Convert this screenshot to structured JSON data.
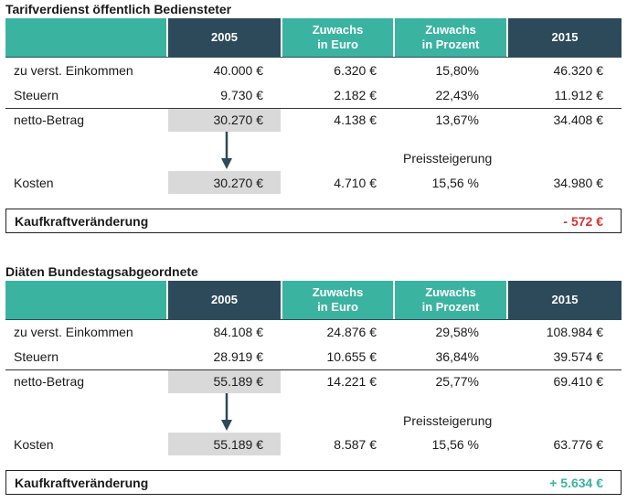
{
  "tables": [
    {
      "title": "Tarifverdienst öffentlich Bediensteter",
      "headers": [
        "2005",
        "Zuwachs\nin Euro",
        "Zuwachs\nin Prozent",
        "2015"
      ],
      "rows": [
        {
          "label": "zu verst. Einkommen",
          "y2005": "40.000 €",
          "euro": "6.320 €",
          "pct": "15,80%",
          "y2015": "46.320 €"
        },
        {
          "label": "Steuern",
          "y2005": "9.730 €",
          "euro": "2.182 €",
          "pct": "22,43%",
          "y2015": "11.912 €"
        },
        {
          "label": "netto-Betrag",
          "y2005": "30.270 €",
          "euro": "4.138 €",
          "pct": "13,67%",
          "y2015": "34.408 €"
        }
      ],
      "price_label": "Preissteigerung",
      "kosten": {
        "label": "Kosten",
        "y2005": "30.270 €",
        "euro": "4.710 €",
        "pct": "15,56 %",
        "y2015": "34.980 €"
      },
      "kaufkraft": {
        "label": "Kaufkraftveränderung",
        "value": "- 572 €",
        "color": "#d6312f"
      }
    },
    {
      "title": "Diäten Bundestagsabgeordnete",
      "headers": [
        "2005",
        "Zuwachs\nin Euro",
        "Zuwachs\nin Prozent",
        "2015"
      ],
      "rows": [
        {
          "label": "zu verst. Einkommen",
          "y2005": "84.108 €",
          "euro": "24.876 €",
          "pct": "29,58%",
          "y2015": "108.984 €"
        },
        {
          "label": "Steuern",
          "y2005": "28.919 €",
          "euro": "10.655 €",
          "pct": "36,84%",
          "y2015": "39.574 €"
        },
        {
          "label": "netto-Betrag",
          "y2005": "55.189 €",
          "euro": "14.221 €",
          "pct": "25,77%",
          "y2015": "69.410 €"
        }
      ],
      "price_label": "Preissteigerung",
      "kosten": {
        "label": "Kosten",
        "y2005": "55.189 €",
        "euro": "8.587 €",
        "pct": "15,56 %",
        "y2015": "63.776 €"
      },
      "kaufkraft": {
        "label": "Kaufkraftveränderung",
        "value": "+ 5.634 €",
        "color": "#3bb3a1"
      }
    }
  ],
  "colors": {
    "teal": "#3bb3a1",
    "navy": "#2c4a5a",
    "grey": "#d9d9d9",
    "negative": "#d6312f",
    "positive": "#3bb3a1"
  }
}
